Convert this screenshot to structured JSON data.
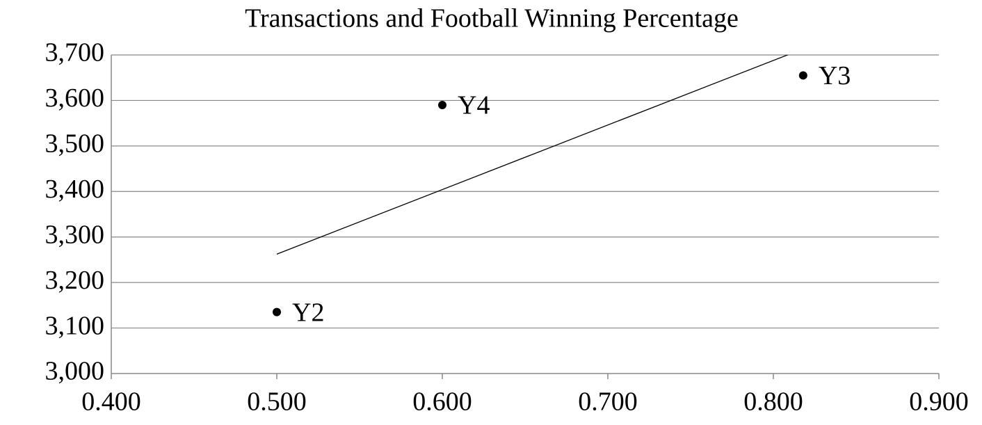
{
  "chart_data": {
    "type": "scatter",
    "title": "Transactions and Football Winning Percentage",
    "x": [
      0.5,
      0.6,
      0.818
    ],
    "values": [
      3135,
      3590,
      3655
    ],
    "labels": [
      "Y2",
      "Y4",
      "Y3"
    ],
    "color": "#000000",
    "trendline": "linear",
    "xlim": [
      0.4,
      0.9
    ],
    "xticks": [
      {
        "value": 0.4,
        "label": "0.400"
      },
      {
        "value": 0.5,
        "label": "0.500"
      },
      {
        "value": 0.6,
        "label": "0.600"
      },
      {
        "value": 0.7,
        "label": "0.700"
      },
      {
        "value": 0.8,
        "label": "0.800"
      },
      {
        "value": 0.9,
        "label": "0.900"
      }
    ],
    "ylim": [
      3000,
      3700
    ],
    "yticks": [
      {
        "value": 3000,
        "label": "3,000"
      },
      {
        "value": 3100,
        "label": "3,100"
      },
      {
        "value": 3200,
        "label": "3,200"
      },
      {
        "value": 3300,
        "label": "3,300"
      },
      {
        "value": 3400,
        "label": "3,400"
      },
      {
        "value": 3500,
        "label": "3,500"
      },
      {
        "value": 3600,
        "label": "3,600"
      },
      {
        "value": 3700,
        "label": "3,700"
      }
    ],
    "grid": true
  }
}
